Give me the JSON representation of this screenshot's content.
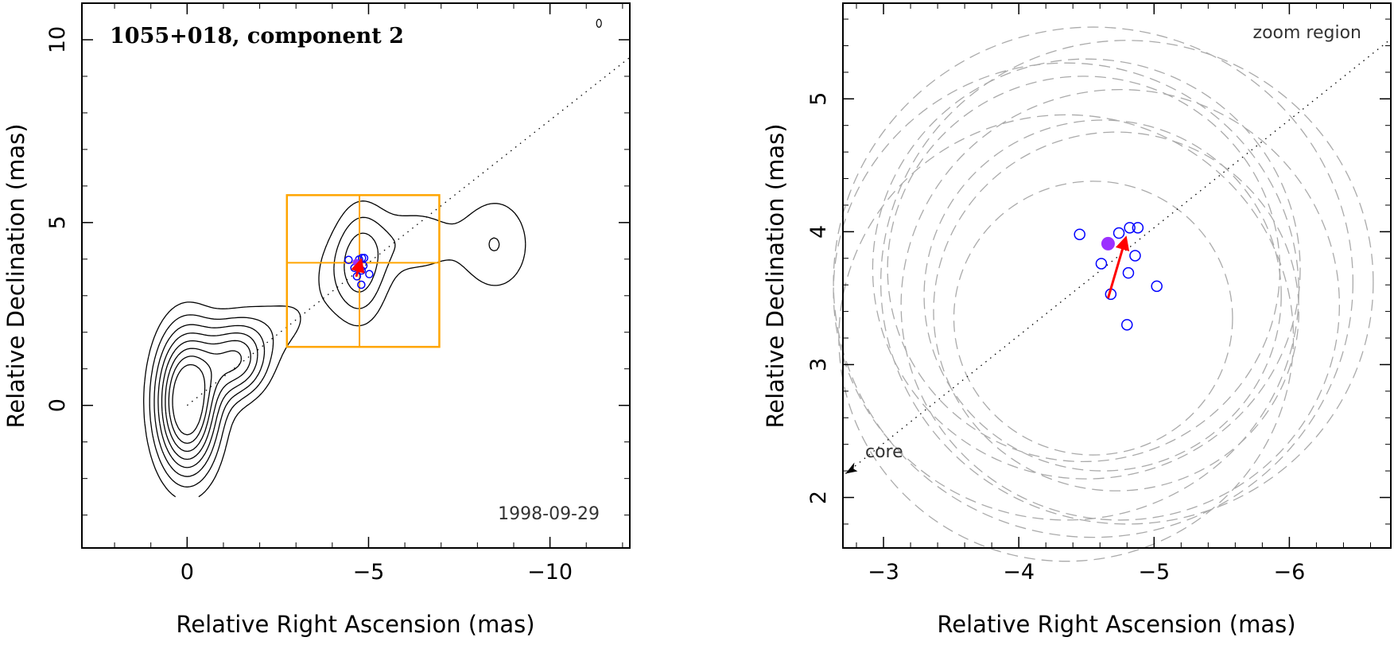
{
  "chart_data": [
    {
      "type": "contour",
      "title": "1055+018, component 2",
      "epoch": "1998-09-29",
      "xlabel": "Relative Right Ascension (mas)",
      "ylabel": "Relative Declination (mas)",
      "xlim": [
        2.9,
        -12.2
      ],
      "ylim": [
        -3.9,
        11.0
      ],
      "xticks": [
        0,
        -5,
        -10
      ],
      "xtick_labels": [
        "0",
        "−5",
        "−10"
      ],
      "yticks": [
        0,
        5,
        10
      ],
      "ytick_labels": [
        "0",
        "5",
        "10"
      ],
      "jet_axis": {
        "slope": -0.78,
        "color": "#000000",
        "style": "dotted"
      },
      "zoom_box": {
        "x_range": [
          -2.75,
          -6.95
        ],
        "y_range": [
          1.6,
          5.75
        ],
        "cross": {
          "x": -4.75,
          "y": 3.9
        },
        "color": "#ffa500"
      },
      "contour_levels": [
        0.25,
        0.4,
        0.55,
        0.7,
        0.85,
        1.0,
        1.15,
        1.3
      ],
      "gaussian_components": [
        {
          "x": 0.0,
          "y": 0.1,
          "sx": 0.62,
          "sy": 1.4,
          "amp": 1.6
        },
        {
          "x": -1.4,
          "y": 1.25,
          "sx": 0.6,
          "sy": 0.75,
          "amp": 0.9
        },
        {
          "x": -2.6,
          "y": 2.2,
          "sx": 0.85,
          "sy": 0.75,
          "amp": 0.25
        },
        {
          "x": -4.8,
          "y": 3.9,
          "sx": 0.55,
          "sy": 1.25,
          "amp": 0.55
        },
        {
          "x": -3.9,
          "y": 3.7,
          "sx": 0.9,
          "sy": 0.9,
          "amp": 0.18
        },
        {
          "x": -6.3,
          "y": 4.5,
          "sx": 0.75,
          "sy": 0.75,
          "amp": 0.35
        },
        {
          "x": -8.5,
          "y": 4.4,
          "sx": 0.85,
          "sy": 1.15,
          "amp": 0.4
        }
      ],
      "points_open": [
        [
          -4.45,
          3.98
        ],
        [
          -4.61,
          3.76
        ],
        [
          -4.68,
          3.53
        ],
        [
          -4.74,
          3.99
        ],
        [
          -4.81,
          3.69
        ],
        [
          -4.82,
          4.03
        ],
        [
          -4.86,
          3.82
        ],
        [
          -4.88,
          4.03
        ],
        [
          -5.02,
          3.59
        ],
        [
          -4.8,
          3.3
        ]
      ],
      "point_filled": [
        -4.66,
        3.91
      ],
      "motion_arrow": {
        "from": [
          -4.66,
          3.52
        ],
        "to": [
          -4.79,
          3.96
        ],
        "color": "#ff0000"
      },
      "colors": {
        "open_points": "#0000ff",
        "filled_point": "#9b30ff",
        "arrow": "#ff0000",
        "zoom_box": "#ffa500"
      }
    },
    {
      "type": "scatter",
      "title": "zoom region",
      "xlabel": "Relative Right Ascension (mas)",
      "ylabel": "Relative Declination (mas)",
      "xlim": [
        -2.7,
        -6.75
      ],
      "ylim": [
        1.62,
        5.72
      ],
      "xticks": [
        -3,
        -4,
        -5,
        -6
      ],
      "xtick_labels": [
        "−3",
        "−4",
        "−5",
        "−6"
      ],
      "yticks": [
        2,
        3,
        4,
        5
      ],
      "ytick_labels": [
        "2",
        "3",
        "4",
        "5"
      ],
      "core_label": "core",
      "points_open": [
        [
          -4.45,
          3.98
        ],
        [
          -4.61,
          3.76
        ],
        [
          -4.68,
          3.53
        ],
        [
          -4.74,
          3.99
        ],
        [
          -4.81,
          3.69
        ],
        [
          -4.82,
          4.03
        ],
        [
          -4.86,
          3.82
        ],
        [
          -4.88,
          4.03
        ],
        [
          -5.02,
          3.59
        ],
        [
          -4.8,
          3.3
        ]
      ],
      "point_filled": [
        -4.66,
        3.91
      ],
      "motion_arrow": {
        "from": [
          -4.66,
          3.5
        ],
        "to": [
          -4.79,
          3.95
        ],
        "color": "#ff0000"
      },
      "error_circles": [
        {
          "cx": -4.55,
          "cy": 3.35,
          "r": 1.03
        },
        {
          "cx": -4.62,
          "cy": 3.52,
          "r": 1.32
        },
        {
          "cx": -4.48,
          "cy": 3.72,
          "r": 1.45
        },
        {
          "cx": -4.75,
          "cy": 3.45,
          "r": 1.62
        },
        {
          "cx": -4.35,
          "cy": 3.2,
          "r": 1.68
        },
        {
          "cx": -4.8,
          "cy": 3.62,
          "r": 1.82
        },
        {
          "cx": -4.55,
          "cy": 3.62,
          "r": 1.92
        },
        {
          "cx": -4.35,
          "cy": 3.55,
          "r": 1.72
        },
        {
          "cx": -4.72,
          "cy": 3.4,
          "r": 1.35
        },
        {
          "cx": -4.5,
          "cy": 3.72,
          "r": 1.58
        }
      ],
      "colors": {
        "open_points": "#0000ff",
        "filled_point": "#9b30ff",
        "arrow": "#ff0000",
        "circles": "#aaaaaa"
      }
    }
  ]
}
